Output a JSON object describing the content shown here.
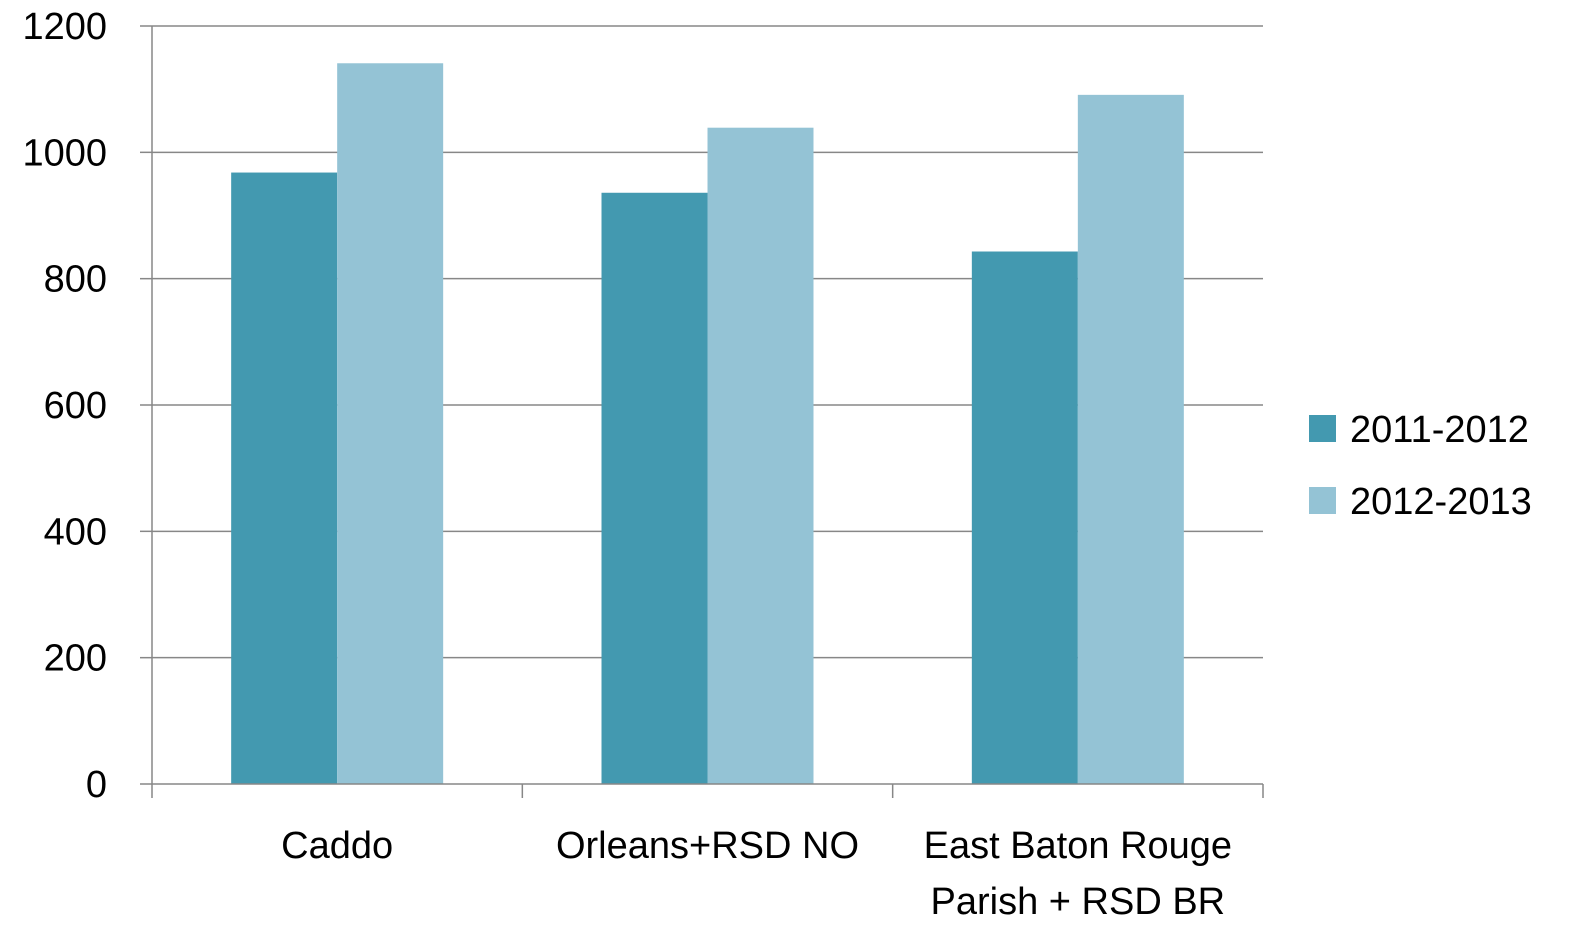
{
  "chart_data": {
    "type": "bar",
    "title": "",
    "xlabel": "",
    "ylabel": "",
    "categories": [
      [
        "Caddo"
      ],
      [
        "Orleans+RSD NO"
      ],
      [
        "East Baton Rouge",
        "Parish + RSD BR"
      ]
    ],
    "series": [
      {
        "name": "2011-2012",
        "color": "#4399b0",
        "values": [
          968,
          936,
          843
        ]
      },
      {
        "name": "2012-2013",
        "color": "#94c3d5",
        "values": [
          1141,
          1039,
          1091
        ]
      }
    ],
    "ylim": [
      0,
      1200
    ],
    "yticks": [
      0,
      200,
      400,
      600,
      800,
      1000,
      1200
    ],
    "grid": true,
    "legend_position": "right"
  }
}
